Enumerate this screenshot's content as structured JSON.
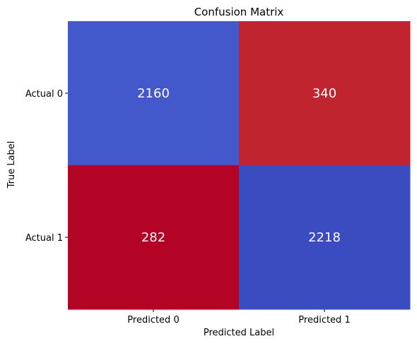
{
  "chart_data": {
    "type": "heatmap",
    "title": "Confusion Matrix",
    "xlabel": "Predicted Label",
    "ylabel": "True Label",
    "x_categories": [
      "Predicted 0",
      "Predicted 1"
    ],
    "y_categories": [
      "Actual 0",
      "Actual 1"
    ],
    "values": [
      [
        2160,
        340
      ],
      [
        282,
        2218
      ]
    ],
    "cell_colors": [
      [
        "#4358cb",
        "#c0242e"
      ],
      [
        "#b40426",
        "#3b4cc0"
      ]
    ],
    "colormap": "coolwarm",
    "colorbar": false,
    "grid": false
  }
}
